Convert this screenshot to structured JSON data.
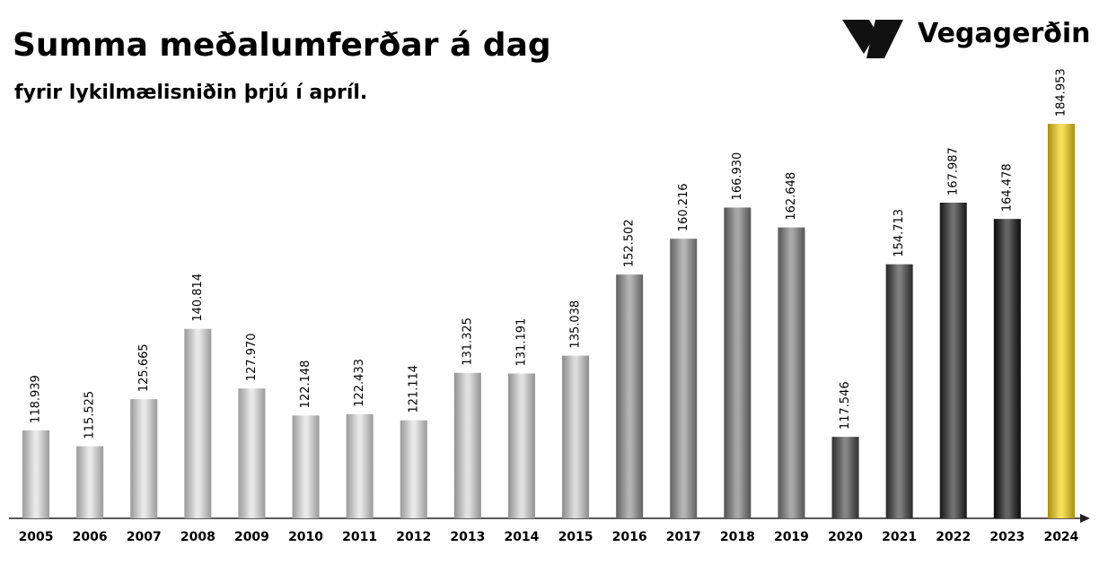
{
  "chart_data": {
    "type": "bar",
    "title": "Summa meðalumferðar á dag",
    "subtitle": "fyrir lykilmælisniðin þrjú í apríl.",
    "brand": "Vegagerðin",
    "categories": [
      "2005",
      "2006",
      "2007",
      "2008",
      "2009",
      "2010",
      "2011",
      "2012",
      "2013",
      "2014",
      "2015",
      "2016",
      "2017",
      "2018",
      "2019",
      "2020",
      "2021",
      "2022",
      "2023",
      "2024"
    ],
    "values": [
      118939,
      115525,
      125665,
      140814,
      127970,
      122148,
      122433,
      121114,
      131325,
      131191,
      135038,
      152502,
      160216,
      166930,
      162648,
      117546,
      154713,
      167987,
      164478,
      184953
    ],
    "value_labels": [
      "118.939",
      "115.525",
      "125.665",
      "140.814",
      "127.970",
      "122.148",
      "122.433",
      "121.114",
      "131.325",
      "131.191",
      "135.038",
      "152.502",
      "160.216",
      "166.930",
      "162.648",
      "117.546",
      "154.713",
      "167.987",
      "164.478",
      "184.953"
    ],
    "colors": [
      "#dcdcdc",
      "#dcdcdc",
      "#dcdcdc",
      "#dcdcdc",
      "#dcdcdc",
      "#dcdcdc",
      "#dcdcdc",
      "#dcdcdc",
      "#d0d0d0",
      "#d0d0d0",
      "#c8c8c8",
      "#8c8c8c",
      "#8c8c8c",
      "#777777",
      "#7a7a7a",
      "#444444",
      "#3a3a3a",
      "#222222",
      "#111111",
      "#f2cc00"
    ],
    "ylim": [
      100000,
      190000
    ]
  }
}
